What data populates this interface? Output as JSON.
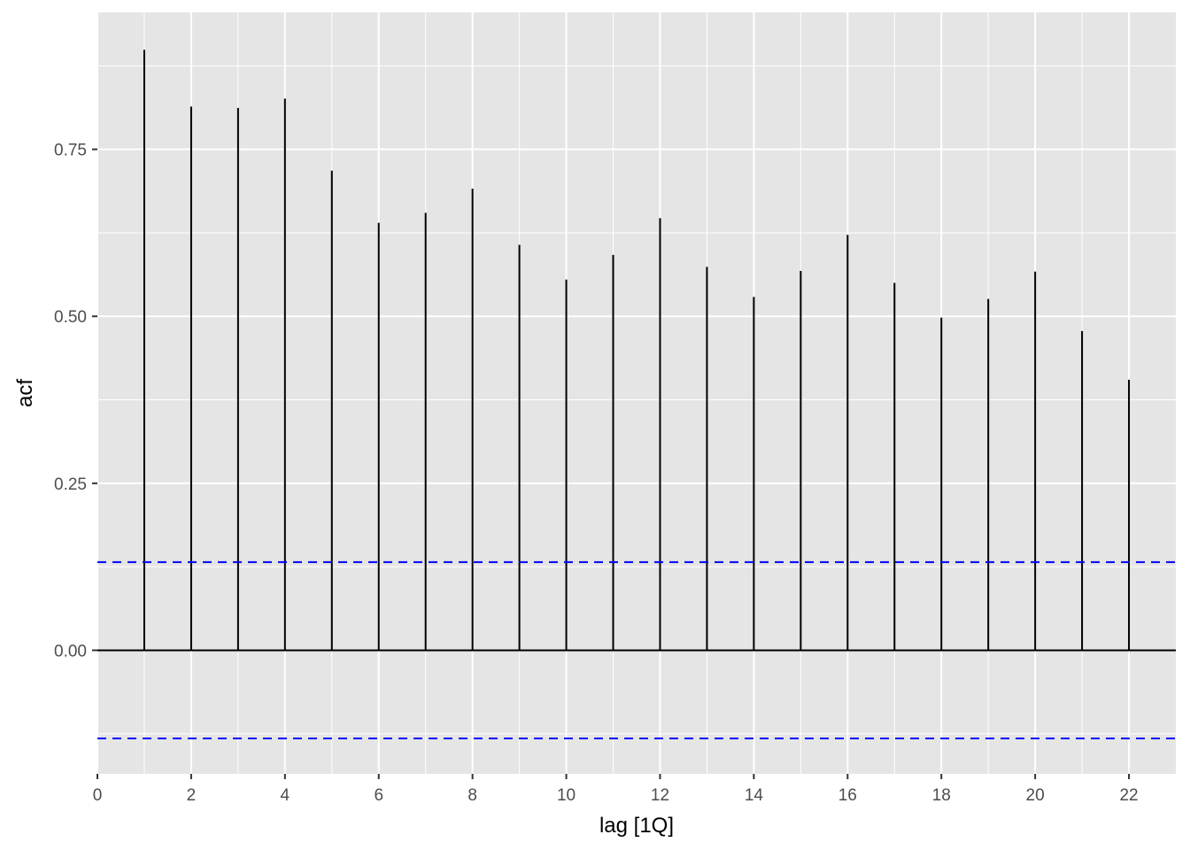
{
  "chart_data": {
    "type": "bar",
    "subtype": "acf-lollipop",
    "title": "",
    "xlabel": "lag [1Q]",
    "ylabel": "acf",
    "xlim": [
      0,
      23
    ],
    "ylim": [
      -0.185,
      0.955
    ],
    "x_ticks": [
      0,
      2,
      4,
      6,
      8,
      10,
      12,
      14,
      16,
      18,
      20,
      22
    ],
    "x_tick_labels": [
      "0",
      "2",
      "4",
      "6",
      "8",
      "10",
      "12",
      "14",
      "16",
      "18",
      "20",
      "22"
    ],
    "y_ticks": [
      0,
      0.25,
      0.5,
      0.75
    ],
    "y_tick_labels": [
      "0.00",
      "0.25",
      "0.50",
      "0.75"
    ],
    "lags": [
      1,
      2,
      3,
      4,
      5,
      6,
      7,
      8,
      9,
      10,
      11,
      12,
      13,
      14,
      15,
      16,
      17,
      18,
      19,
      20,
      21,
      22
    ],
    "values": [
      0.899,
      0.814,
      0.812,
      0.826,
      0.718,
      0.64,
      0.655,
      0.691,
      0.607,
      0.555,
      0.592,
      0.647,
      0.574,
      0.529,
      0.568,
      0.622,
      0.55,
      0.498,
      0.526,
      0.567,
      0.478,
      0.405
    ],
    "confidence_bounds": [
      0.132,
      -0.132
    ],
    "grid": true,
    "colors": {
      "panel_background": "#e5e5e5",
      "grid": "#ffffff",
      "bar": "#000000",
      "confidence_line": "#0000ff"
    }
  }
}
